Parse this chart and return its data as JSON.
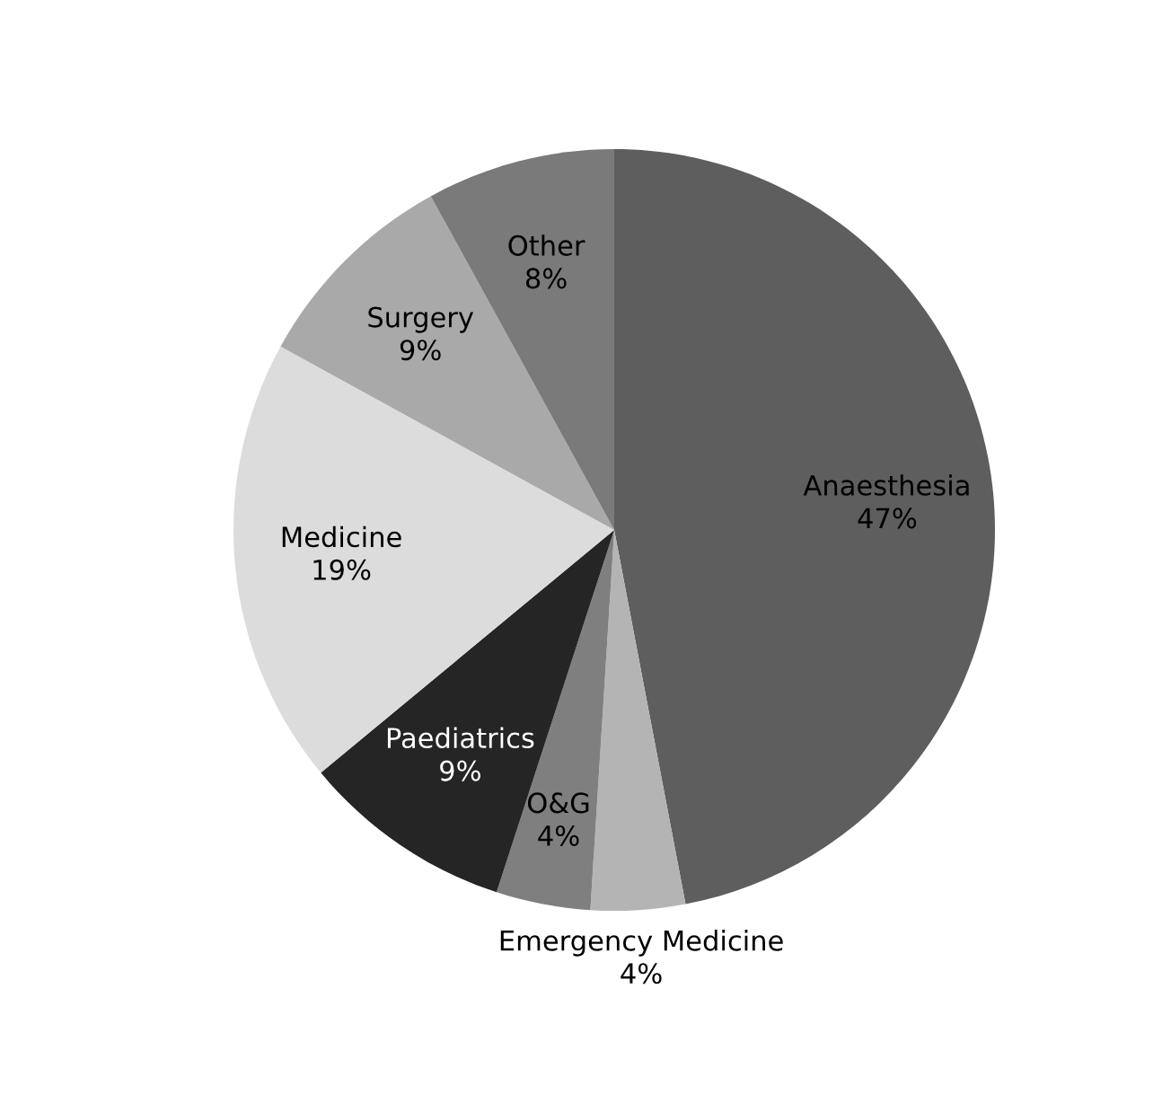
{
  "chart_data": {
    "type": "pie",
    "categories": [
      "Anaesthesia",
      "Emergency Medicine",
      "O&G",
      "Paediatrics",
      "Medicine",
      "Surgery",
      "Other"
    ],
    "values": [
      47,
      4,
      4,
      9,
      19,
      9,
      8
    ],
    "value_labels": [
      "47%",
      "4%",
      "4%",
      "9%",
      "19%",
      "9%",
      "8%"
    ],
    "colors": [
      "#5e5e5e",
      "#b4b4b4",
      "#7f7f7f",
      "#252525",
      "#dcdcdc",
      "#a9a9a9",
      "#7a7a7a"
    ],
    "legend": false
  }
}
